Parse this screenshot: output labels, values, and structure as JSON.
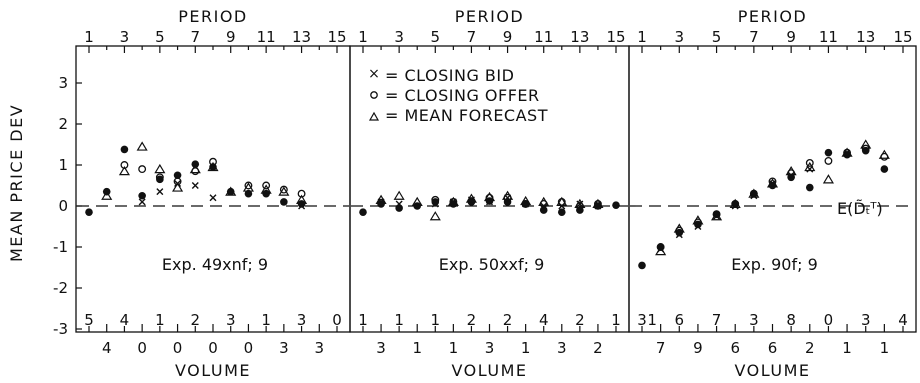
{
  "y_axis_label": "MEAN PRICE DEV",
  "legend": {
    "closing_bid": "= CLOSING BID",
    "closing_offer": "= CLOSING OFFER",
    "mean_forecast": "= MEAN FORECAST"
  },
  "expected_label": "E(D̃ₜᵀ)",
  "chart_data": [
    {
      "type": "scatter",
      "title": "Exp. 49xnf; 9",
      "top_axis_label": "PERIOD",
      "top_ticks": [
        "1",
        "3",
        "5",
        "7",
        "9",
        "11",
        "13",
        "15"
      ],
      "xlabel": "VOLUME",
      "ylim": [
        -3,
        3.7
      ],
      "y_ticks": [
        "3",
        "2",
        "1",
        "0",
        "-1",
        "-2",
        "-3"
      ],
      "volume_odd": [
        "5",
        "4",
        "1",
        "2",
        "3",
        "1",
        "3",
        "0"
      ],
      "volume_even": [
        "4",
        "0",
        "0",
        "0",
        "0",
        "3",
        "3"
      ],
      "series": [
        {
          "name": "dot",
          "values": [
            -0.15,
            0.35,
            1.38,
            0.25,
            0.65,
            0.75,
            1.02,
            0.95,
            0.35,
            0.3,
            0.3,
            0.1,
            0.05
          ]
        },
        {
          "name": "CLOSING BID",
          "values": [
            null,
            null,
            null,
            0.1,
            0.35,
            0.55,
            0.5,
            0.2,
            null,
            null,
            null,
            null,
            0.0
          ]
        },
        {
          "name": "CLOSING OFFER",
          "values": [
            null,
            null,
            1.0,
            0.9,
            0.7,
            0.6,
            0.85,
            1.08,
            null,
            0.5,
            0.5,
            0.4,
            0.3
          ]
        },
        {
          "name": "MEAN FORECAST",
          "values": [
            null,
            0.25,
            0.85,
            1.45,
            0.9,
            0.45,
            0.9,
            0.95,
            0.35,
            0.45,
            0.4,
            0.35,
            0.15
          ]
        }
      ]
    },
    {
      "type": "scatter",
      "title": "Exp. 50xxf; 9",
      "top_axis_label": "PERIOD",
      "top_ticks": [
        "1",
        "3",
        "5",
        "7",
        "9",
        "11",
        "13",
        "15"
      ],
      "xlabel": "VOLUME",
      "ylim": [
        -3,
        3.7
      ],
      "volume_odd": [
        "1",
        "1",
        "1",
        "2",
        "2",
        "4",
        "2",
        "1",
        "1"
      ],
      "volume_even": [
        "3",
        "1",
        "1",
        "3",
        "1",
        "3",
        "2"
      ],
      "series": [
        {
          "name": "dot",
          "values": [
            -0.15,
            0.05,
            -0.05,
            0.0,
            0.1,
            0.05,
            0.1,
            0.12,
            0.1,
            0.05,
            -0.1,
            -0.15,
            -0.1,
            0.0,
            0.02
          ]
        },
        {
          "name": "CLOSING BID",
          "values": [
            null,
            0.1,
            0.05,
            null,
            0.05,
            0.1,
            0.15,
            0.1,
            0.2,
            0.05,
            0.0,
            0.0,
            0.05,
            0.0,
            null
          ]
        },
        {
          "name": "CLOSING OFFER",
          "values": [
            null,
            0.08,
            null,
            null,
            0.15,
            0.1,
            0.12,
            0.2,
            0.2,
            0.05,
            0.05,
            0.1,
            0.0,
            0.05,
            null
          ]
        },
        {
          "name": "MEAN FORECAST",
          "values": [
            null,
            0.15,
            0.25,
            0.1,
            -0.25,
            0.1,
            0.18,
            0.22,
            0.25,
            0.12,
            0.1,
            0.1,
            0.05,
            0.05,
            null
          ]
        }
      ]
    },
    {
      "type": "scatter",
      "title": "Exp. 90f; 9",
      "top_axis_label": "PERIOD",
      "top_ticks": [
        "1",
        "3",
        "5",
        "7",
        "9",
        "11",
        "13",
        "15"
      ],
      "xlabel": "VOLUME",
      "ylim": [
        -3,
        3.7
      ],
      "volume_odd": [
        "3",
        "6",
        "7",
        "3",
        "8",
        "0",
        "3",
        "4"
      ],
      "volume_even": [
        "7",
        "9",
        "6",
        "6",
        "2",
        "1",
        "1"
      ],
      "series": [
        {
          "name": "dot",
          "values": [
            -1.45,
            -1.0,
            -0.65,
            -0.45,
            -0.2,
            0.05,
            0.3,
            0.5,
            0.7,
            0.45,
            1.3,
            1.25,
            1.35,
            0.9
          ]
        },
        {
          "name": "CLOSING BID",
          "values": [
            null,
            -1.05,
            -0.7,
            -0.5,
            -0.25,
            0.0,
            0.25,
            0.55,
            0.75,
            0.9,
            null,
            null,
            null,
            null
          ]
        },
        {
          "name": "CLOSING OFFER",
          "values": [
            null,
            -1.0,
            -0.6,
            -0.4,
            -0.2,
            0.05,
            0.3,
            0.6,
            0.8,
            1.05,
            1.1,
            1.3,
            1.4,
            1.2
          ]
        },
        {
          "name": "MEAN FORECAST",
          "values": [
            null,
            -1.1,
            -0.55,
            -0.35,
            -0.25,
            0.05,
            0.3,
            0.55,
            0.85,
            0.95,
            0.65,
            1.3,
            1.5,
            1.25
          ]
        }
      ]
    }
  ]
}
